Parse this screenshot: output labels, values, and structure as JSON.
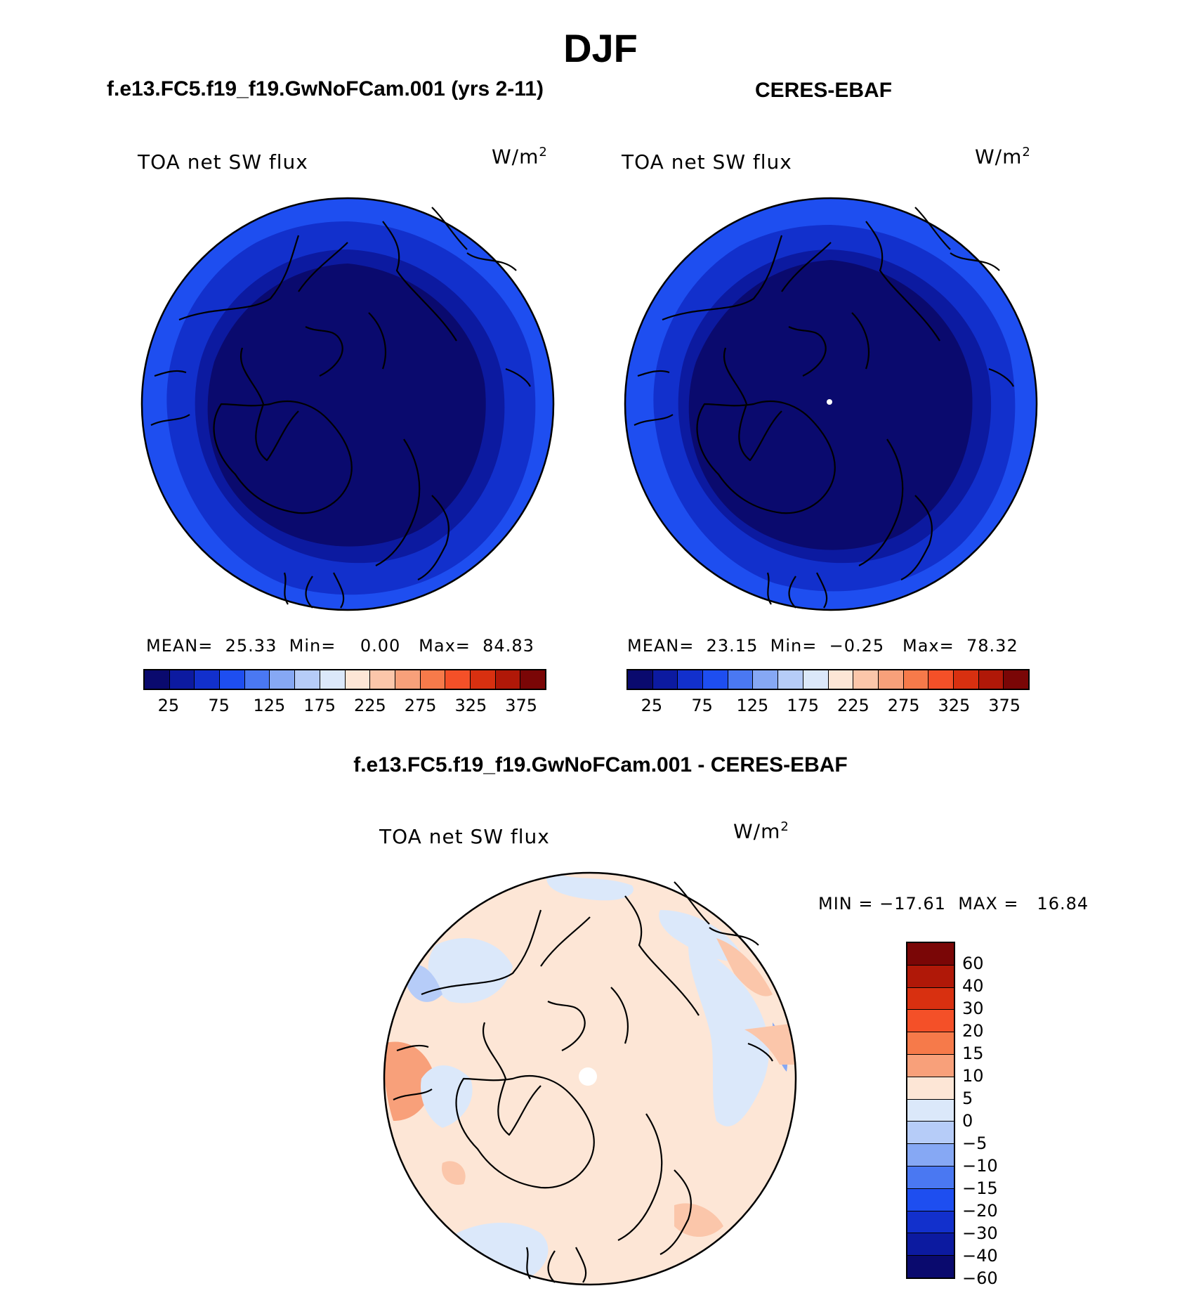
{
  "title": "DJF",
  "panels": {
    "model": {
      "header": "f.e13.FC5.f19_f19.GwNoFCam.001 (yrs 2-11)",
      "label": "TOA net SW flux",
      "units": "W/m",
      "units_sup": "2",
      "stats": {
        "mean_label": "MEAN=",
        "mean": "25.33",
        "min_label": "Min=",
        "min": "0.00",
        "max_label": "Max=",
        "max": "84.83"
      }
    },
    "obs": {
      "header": "CERES-EBAF",
      "label": "TOA net SW flux",
      "units": "W/m",
      "units_sup": "2",
      "stats": {
        "mean_label": "MEAN=",
        "mean": "23.15",
        "min_label": "Min=",
        "min": "−0.25",
        "max_label": "Max=",
        "max": "78.32"
      }
    },
    "diff": {
      "header": "f.e13.FC5.f19_f19.GwNoFCam.001 - CERES-EBAF",
      "label": "TOA net SW flux",
      "units": "W/m",
      "units_sup": "2",
      "minmax": {
        "min_label": "MIN =",
        "min": "−17.61",
        "max_label": "MAX =",
        "max": "16.84"
      }
    }
  },
  "colorbar_abs": {
    "colors": [
      "#0a0a6e",
      "#0c1aa0",
      "#1230cc",
      "#1e4ef0",
      "#4a78f2",
      "#86a8f4",
      "#b6ccf8",
      "#dbe8fa",
      "#fde6d6",
      "#fbc6aa",
      "#f8a07a",
      "#f67a4a",
      "#f45028",
      "#d83010",
      "#b01808",
      "#7a0606"
    ],
    "tick_labels": [
      "25",
      "75",
      "125",
      "175",
      "225",
      "275",
      "325",
      "375"
    ]
  },
  "colorbar_diff": {
    "colors": [
      "#7a0606",
      "#b01808",
      "#d83010",
      "#f45028",
      "#f67a4a",
      "#f8a07a",
      "#fde6d6",
      "#dbe8fa",
      "#b6ccf8",
      "#86a8f4",
      "#4a78f2",
      "#1e4ef0",
      "#1230cc",
      "#0c1aa0",
      "#0a0a6e"
    ],
    "tick_labels": [
      "60",
      "40",
      "30",
      "20",
      "15",
      "10",
      "5",
      "0",
      "−5",
      "−10",
      "−15",
      "−20",
      "−30",
      "−40",
      "−60"
    ]
  }
}
